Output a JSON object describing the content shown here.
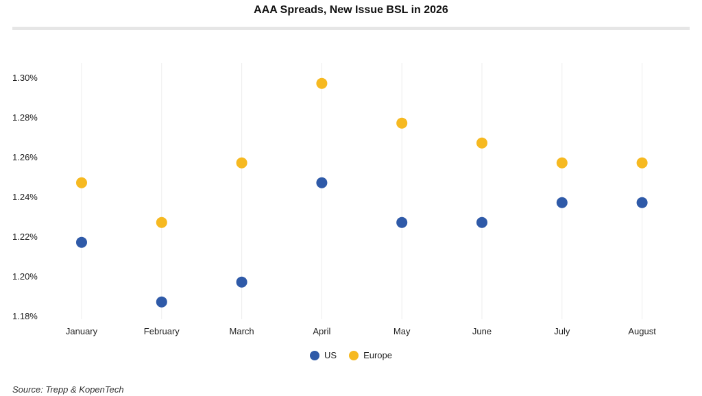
{
  "chart_data": {
    "type": "scatter",
    "title": "AAA Spreads, New Issue BSL in 2026",
    "categories": [
      "January",
      "February",
      "March",
      "April",
      "May",
      "June",
      "July",
      "August"
    ],
    "series": [
      {
        "name": "US",
        "color": "#2f5aa8",
        "values": [
          1.217,
          1.187,
          1.197,
          1.247,
          1.227,
          1.227,
          1.237,
          1.237
        ]
      },
      {
        "name": "Europe",
        "color": "#f6b921",
        "values": [
          1.247,
          1.227,
          1.257,
          1.297,
          1.277,
          1.267,
          1.257,
          1.257
        ]
      }
    ],
    "yticks": [
      "1.18%",
      "1.20%",
      "1.22%",
      "1.24%",
      "1.26%",
      "1.28%",
      "1.30%"
    ],
    "ytick_values": [
      1.18,
      1.2,
      1.22,
      1.24,
      1.26,
      1.28,
      1.3
    ],
    "ylim": [
      1.18,
      1.3
    ],
    "xlabel": "",
    "ylabel": "",
    "grid": "vertical",
    "legend_position": "bottom"
  },
  "source": "Source: Trepp & KopenTech"
}
